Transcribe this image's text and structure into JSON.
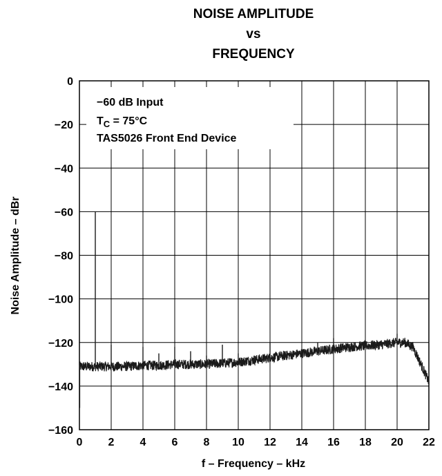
{
  "chart_data": {
    "type": "line",
    "title_lines": [
      "NOISE AMPLITUDE",
      "vs",
      "FREQUENCY"
    ],
    "xlabel": "f – Frequency – kHz",
    "ylabel": "Noise Amplitude – dBr",
    "xlim": [
      0,
      22
    ],
    "ylim": [
      -160,
      0
    ],
    "xticks": [
      0,
      2,
      4,
      6,
      8,
      10,
      12,
      14,
      16,
      18,
      20,
      22
    ],
    "xtick_labels": [
      "0",
      "2",
      "4",
      "6",
      "8",
      "10",
      "12",
      "14",
      "16",
      "18",
      "20",
      "22"
    ],
    "yticks": [
      0,
      -20,
      -40,
      -60,
      -80,
      -100,
      -120,
      -140,
      -160
    ],
    "ytick_labels": [
      "0",
      "−20",
      "−40",
      "−60",
      "−80",
      "−100",
      "−120",
      "−140",
      "−160"
    ],
    "grid": true,
    "annotations": {
      "line1": "−60 dB Input",
      "line2_main": "T",
      "line2_sub": "C",
      "line2_rest": " = 75°C",
      "line3": "TAS5026 Front End Device"
    },
    "series": [
      {
        "baseline": {
          "x": [
            0,
            0.5,
            1,
            2,
            3,
            4,
            5,
            6,
            7,
            8,
            9,
            10,
            11,
            12,
            13,
            14,
            15,
            16,
            17,
            18,
            19,
            20,
            20.5,
            21,
            21.5,
            22
          ],
          "y": [
            -131,
            -131,
            -131,
            -131,
            -131,
            -130.5,
            -130.5,
            -130,
            -130,
            -130,
            -129.5,
            -129,
            -128,
            -127,
            -126,
            -125,
            -124,
            -123,
            -122,
            -121.5,
            -121,
            -120,
            -120,
            -122,
            -130,
            -138
          ]
        },
        "spikes": [
          {
            "x": 1,
            "y": -60
          },
          {
            "x": 2,
            "y": -121
          },
          {
            "x": 3,
            "y": -129
          },
          {
            "x": 4,
            "y": -122
          },
          {
            "x": 5,
            "y": -125
          },
          {
            "x": 6,
            "y": -122
          },
          {
            "x": 7,
            "y": -124
          },
          {
            "x": 8,
            "y": -126
          },
          {
            "x": 9,
            "y": -121
          },
          {
            "x": 10,
            "y": -125
          },
          {
            "x": 11,
            "y": -126
          },
          {
            "x": 12,
            "y": -120
          },
          {
            "x": 13,
            "y": -124
          },
          {
            "x": 14,
            "y": -123
          },
          {
            "x": 15,
            "y": -120
          },
          {
            "x": 16,
            "y": -118
          },
          {
            "x": 17,
            "y": -121
          },
          {
            "x": 18,
            "y": -120
          },
          {
            "x": 19,
            "y": -119
          },
          {
            "x": 20,
            "y": -116
          }
        ]
      }
    ]
  }
}
